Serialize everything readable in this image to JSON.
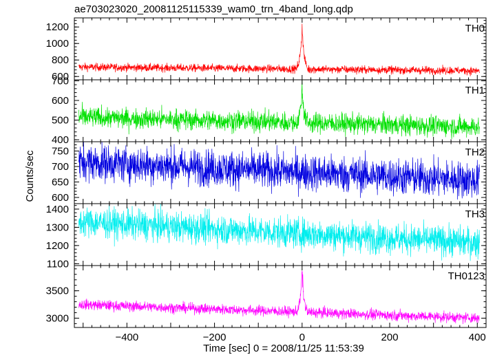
{
  "window": {
    "title": "ae703023020_20081125115339_wam0_trn_4band_long.qdp"
  },
  "chart_data": {
    "type": "line",
    "title": "ae703023020_20081125115339_wam0_trn_4band_long.qdp",
    "xlabel": "Time [sec] 0 = 2008/11/25 11:53:39",
    "ylabel": "Counts/sec",
    "xlim": [
      -520,
      420
    ],
    "x_ticks": [
      -400,
      -200,
      0,
      200,
      400
    ],
    "x_tick_labels": [
      "−400",
      "−200",
      "0",
      "200",
      "400"
    ],
    "grid": false,
    "panels": [
      {
        "label": "TH0",
        "color": "#ff0000",
        "ylim": [
          560,
          1310
        ],
        "y_ticks": [
          600,
          800,
          1000,
          1200
        ],
        "y_tick_labels": [
          "600",
          "800",
          "1000",
          "1200"
        ],
        "series": {
          "x_start": -510,
          "x_end": 405,
          "trend_start": 715,
          "trend_end": 670,
          "noise": 24,
          "spike_x": 0,
          "spike_peak": 1310,
          "spike_width": 4
        }
      },
      {
        "label": "TH1",
        "color": "#00e000",
        "ylim": [
          390,
          705
        ],
        "y_ticks": [
          400,
          500,
          600,
          700
        ],
        "y_tick_labels": [
          "400",
          "500",
          "600",
          "700"
        ],
        "series": {
          "x_start": -510,
          "x_end": 405,
          "trend_start": 515,
          "trend_end": 465,
          "noise": 26,
          "spike_x": 0,
          "spike_peak": 690,
          "spike_width": 4
        }
      },
      {
        "label": "TH2",
        "color": "#0000e0",
        "ylim": [
          580,
          780
        ],
        "y_ticks": [
          600,
          650,
          700,
          750
        ],
        "y_tick_labels": [
          "600",
          "650",
          "700",
          "750"
        ],
        "series": {
          "x_start": -510,
          "x_end": 405,
          "trend_start": 715,
          "trend_end": 655,
          "noise": 30,
          "spike_x": 0,
          "spike_peak": 690,
          "spike_width": 0
        }
      },
      {
        "label": "TH3",
        "color": "#00eeee",
        "ylim": [
          1090,
          1430
        ],
        "y_ticks": [
          1100,
          1200,
          1300,
          1400
        ],
        "y_tick_labels": [
          "1100",
          "1200",
          "1300",
          "1400"
        ],
        "series": {
          "x_start": -510,
          "x_end": 405,
          "trend_start": 1330,
          "trend_end": 1215,
          "noise": 42,
          "spike_x": 0,
          "spike_peak": 1250,
          "spike_width": 0
        }
      },
      {
        "label": "TH0123",
        "color": "#ff00ff",
        "ylim": [
          2830,
          3960
        ],
        "y_ticks": [
          3000,
          3500
        ],
        "y_tick_labels": [
          "3000",
          "3500"
        ],
        "series": {
          "x_start": -510,
          "x_end": 405,
          "trend_start": 3250,
          "trend_end": 3000,
          "noise": 48,
          "spike_x": 0,
          "spike_peak": 3960,
          "spike_width": 4
        }
      }
    ]
  }
}
